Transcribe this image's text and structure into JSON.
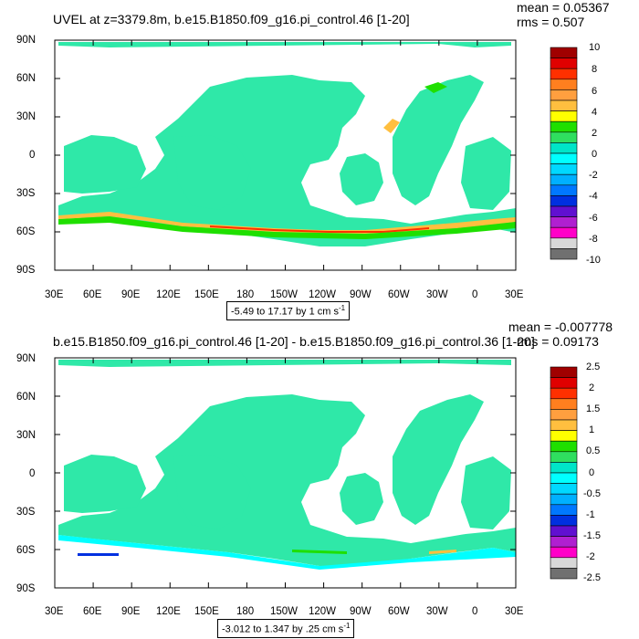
{
  "panels": [
    {
      "title": "UVEL at z=3379.8m, b.e15.B1850.f09_g16.pi_control.46 [1-20]",
      "mean_text": "mean = 0.05367",
      "rms_text": "rms = 0.507",
      "range_text": "-5.49 to 17.17 by 1 cm s",
      "range_sup": "-1",
      "colorbar_labels": [
        "10",
        "8",
        "6",
        "4",
        "2",
        "0",
        "-2",
        "-4",
        "-6",
        "-8",
        "-10"
      ],
      "colorbar_colors": [
        "#a00000",
        "#e00000",
        "#ff3000",
        "#ff7f1f",
        "#ff9f3f",
        "#ffbf3f",
        "#ffff00",
        "#1fdf00",
        "#2fdf5f",
        "#00e5c8",
        "#00ffff",
        "#00d8ff",
        "#00b0ff",
        "#0078ff",
        "#0030e0",
        "#6010d0",
        "#b020d0",
        "#ff00c8",
        "#d8d8d8",
        "#707070"
      ]
    },
    {
      "title": "b.e15.B1850.f09_g16.pi_control.46 [1-20] - b.e15.B1850.f09_g16.pi_control.36 [1-20]",
      "mean_text": "mean = -0.007778",
      "rms_text": "rms = 0.09173",
      "range_text": "-3.012 to 1.347 by .25 cm s",
      "range_sup": "-1",
      "colorbar_labels": [
        "2.5",
        "2",
        "1.5",
        "1",
        "0.5",
        "0",
        "-0.5",
        "-1",
        "-1.5",
        "-2",
        "-2.5"
      ],
      "colorbar_colors": [
        "#a00000",
        "#e00000",
        "#ff3000",
        "#ff7f1f",
        "#ff9f3f",
        "#ffbf3f",
        "#ffff00",
        "#1fdf00",
        "#2fdf5f",
        "#00e5c8",
        "#00ffff",
        "#00d8ff",
        "#00b0ff",
        "#0078ff",
        "#0030e0",
        "#6010d0",
        "#b020d0",
        "#ff00c8",
        "#d8d8d8",
        "#707070"
      ]
    }
  ],
  "lat_labels": [
    "90N",
    "60N",
    "30N",
    "0",
    "30S",
    "60S",
    "90S"
  ],
  "lon_labels": [
    "30E",
    "60E",
    "90E",
    "120E",
    "150E",
    "180",
    "150W",
    "120W",
    "90W",
    "60W",
    "30W",
    "0",
    "30E"
  ],
  "ocean_fill_color": "#2fe8a8",
  "land_color": "#ffffff"
}
